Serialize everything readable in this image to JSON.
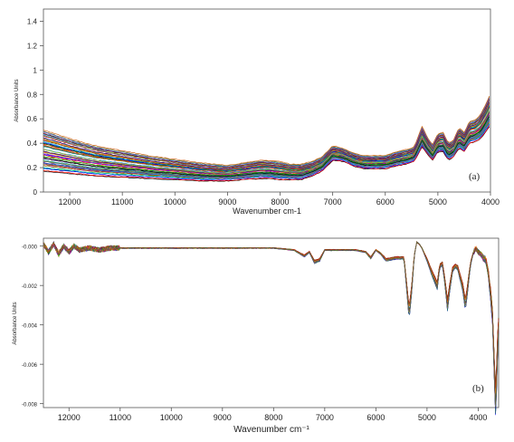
{
  "chart_data": [
    {
      "type": "line",
      "panel_label": "(a)",
      "xlabel": "Wavenumber cm-1",
      "ylabel": "Absorbance Units",
      "xlim": [
        12500,
        4000
      ],
      "ylim": [
        0,
        1.5
      ],
      "xticks": [
        12000,
        11000,
        10000,
        9000,
        8000,
        7000,
        6000,
        5000,
        4000
      ],
      "yticks": [
        0,
        0.2,
        0.4,
        0.6,
        0.8,
        1,
        1.2,
        1.4
      ],
      "grid": false,
      "series_count": 60,
      "band": {
        "x": [
          12500,
          12000,
          11500,
          11000,
          10500,
          10000,
          9500,
          9000,
          8700,
          8400,
          8200,
          8000,
          7800,
          7600,
          7400,
          7200,
          7000,
          6800,
          6600,
          6400,
          6200,
          6000,
          5800,
          5600,
          5450,
          5300,
          5200,
          5100,
          5000,
          4900,
          4800,
          4700,
          4600,
          4500,
          4400,
          4300,
          4200,
          4100,
          4000
        ],
        "low": [
          0.18,
          0.16,
          0.14,
          0.13,
          0.12,
          0.11,
          0.1,
          0.1,
          0.11,
          0.12,
          0.12,
          0.11,
          0.11,
          0.11,
          0.14,
          0.18,
          0.27,
          0.26,
          0.22,
          0.2,
          0.2,
          0.2,
          0.22,
          0.24,
          0.26,
          0.38,
          0.32,
          0.27,
          0.34,
          0.34,
          0.27,
          0.3,
          0.37,
          0.34,
          0.41,
          0.42,
          0.44,
          0.5,
          0.56
        ],
        "high": [
          0.5,
          0.43,
          0.37,
          0.33,
          0.29,
          0.26,
          0.23,
          0.21,
          0.23,
          0.25,
          0.25,
          0.24,
          0.22,
          0.22,
          0.24,
          0.28,
          0.37,
          0.35,
          0.31,
          0.29,
          0.29,
          0.29,
          0.32,
          0.34,
          0.36,
          0.53,
          0.44,
          0.38,
          0.47,
          0.48,
          0.39,
          0.42,
          0.52,
          0.48,
          0.57,
          0.58,
          0.62,
          0.7,
          0.8
        ]
      }
    },
    {
      "type": "line",
      "panel_label": "(b)",
      "xlabel": "Wavenumber cm⁻¹",
      "ylabel": "Absorbance Units",
      "xlim": [
        12500,
        3600
      ],
      "ylim": [
        -0.0082,
        0.0004
      ],
      "xticks": [
        12000,
        11000,
        10000,
        9000,
        8000,
        7000,
        6000,
        5000,
        4000
      ],
      "yticks": [
        0,
        -0.002,
        -0.004,
        -0.006,
        -0.008
      ],
      "ytick_labels": [
        "-0.000",
        "-0.002",
        "-0.004",
        "-0.006",
        "-0.008"
      ],
      "grid": false,
      "series_count": 40,
      "mean": {
        "x": [
          12500,
          12400,
          12300,
          12200,
          12100,
          12000,
          11900,
          11800,
          11600,
          11400,
          11200,
          11000,
          10000,
          9000,
          8000,
          7600,
          7400,
          7300,
          7200,
          7100,
          7000,
          6800,
          6600,
          6400,
          6200,
          6100,
          6000,
          5900,
          5800,
          5600,
          5450,
          5350,
          5300,
          5250,
          5200,
          5150,
          5100,
          5000,
          4900,
          4800,
          4750,
          4700,
          4650,
          4600,
          4550,
          4500,
          4450,
          4400,
          4350,
          4300,
          4250,
          4200,
          4150,
          4100,
          4050,
          4000,
          3950,
          3900,
          3850,
          3800,
          3760,
          3720,
          3700,
          3680,
          3660,
          3640,
          3620,
          3600
        ],
        "y": [
          0.0001,
          -0.0003,
          0.0001,
          -0.0004,
          0.0,
          -0.0003,
          0.0,
          -0.0002,
          -0.0001,
          -0.0002,
          -0.0001,
          -0.0001,
          -0.0001,
          -0.0001,
          -0.0001,
          -0.0002,
          -0.0005,
          -0.0003,
          -0.0008,
          -0.0007,
          -0.0002,
          -0.0002,
          -0.0002,
          -0.0002,
          -0.0003,
          -0.0006,
          -0.0002,
          -0.0004,
          -0.0007,
          -0.0006,
          -0.0006,
          -0.0034,
          -0.0022,
          -0.0005,
          0.0002,
          0.0001,
          -0.0001,
          -0.0007,
          -0.0014,
          -0.002,
          -0.001,
          -0.0009,
          -0.0018,
          -0.003,
          -0.002,
          -0.0012,
          -0.001,
          -0.0011,
          -0.0016,
          -0.0021,
          -0.003,
          -0.002,
          -0.0009,
          -0.0004,
          -0.0001,
          -0.0003,
          -0.0004,
          -0.0006,
          -0.0007,
          -0.0014,
          -0.0024,
          -0.0036,
          -0.005,
          -0.0066,
          -0.0078,
          -0.0068,
          -0.005,
          -0.004
        ]
      }
    }
  ]
}
